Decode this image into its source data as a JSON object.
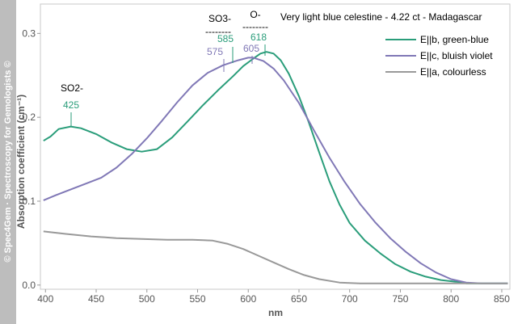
{
  "side_credit": "© Spec4Gem · Spectroscopy for Gemologists ©",
  "chart_data": {
    "type": "line",
    "title": "Very light blue celestine - 4.22 ct - Madagascar",
    "xlabel": "nm",
    "ylabel": "Absorption coefficient (cm⁻¹)",
    "xlim": [
      395,
      858
    ],
    "ylim": [
      -0.005,
      0.335
    ],
    "x_ticks": [
      400,
      450,
      500,
      550,
      600,
      650,
      700,
      750,
      800,
      850
    ],
    "y_ticks": [
      0.0,
      0.1,
      0.2,
      0.3
    ],
    "y_tick_labels": [
      "0.0",
      "0.1",
      "0.2",
      "0.3"
    ],
    "legend_position": "top-right",
    "grid": false,
    "series": [
      {
        "name": "E||b, green-blue",
        "color": "#2a9d7a",
        "points": [
          [
            398,
            0.172
          ],
          [
            405,
            0.177
          ],
          [
            413,
            0.186
          ],
          [
            425,
            0.189
          ],
          [
            435,
            0.187
          ],
          [
            450,
            0.18
          ],
          [
            465,
            0.17
          ],
          [
            480,
            0.162
          ],
          [
            495,
            0.159
          ],
          [
            510,
            0.162
          ],
          [
            525,
            0.176
          ],
          [
            540,
            0.195
          ],
          [
            555,
            0.214
          ],
          [
            570,
            0.232
          ],
          [
            585,
            0.249
          ],
          [
            595,
            0.261
          ],
          [
            605,
            0.27
          ],
          [
            612,
            0.276
          ],
          [
            618,
            0.278
          ],
          [
            625,
            0.276
          ],
          [
            632,
            0.268
          ],
          [
            640,
            0.252
          ],
          [
            650,
            0.225
          ],
          [
            660,
            0.193
          ],
          [
            670,
            0.158
          ],
          [
            680,
            0.124
          ],
          [
            690,
            0.096
          ],
          [
            700,
            0.074
          ],
          [
            715,
            0.053
          ],
          [
            730,
            0.038
          ],
          [
            745,
            0.025
          ],
          [
            760,
            0.016
          ],
          [
            775,
            0.01
          ],
          [
            790,
            0.006
          ],
          [
            805,
            0.004
          ],
          [
            815,
            0.002
          ],
          [
            830,
            0.002
          ],
          [
            845,
            0.002
          ],
          [
            856,
            0.002
          ]
        ]
      },
      {
        "name": "E||c, bluish violet",
        "color": "#8078b6",
        "points": [
          [
            398,
            0.101
          ],
          [
            410,
            0.107
          ],
          [
            425,
            0.114
          ],
          [
            440,
            0.121
          ],
          [
            455,
            0.128
          ],
          [
            470,
            0.14
          ],
          [
            485,
            0.156
          ],
          [
            500,
            0.175
          ],
          [
            515,
            0.196
          ],
          [
            530,
            0.218
          ],
          [
            545,
            0.238
          ],
          [
            560,
            0.253
          ],
          [
            575,
            0.262
          ],
          [
            590,
            0.268
          ],
          [
            600,
            0.271
          ],
          [
            605,
            0.271
          ],
          [
            615,
            0.267
          ],
          [
            625,
            0.258
          ],
          [
            635,
            0.244
          ],
          [
            650,
            0.217
          ],
          [
            665,
            0.184
          ],
          [
            680,
            0.152
          ],
          [
            695,
            0.123
          ],
          [
            710,
            0.097
          ],
          [
            725,
            0.075
          ],
          [
            740,
            0.056
          ],
          [
            755,
            0.04
          ],
          [
            770,
            0.026
          ],
          [
            785,
            0.015
          ],
          [
            800,
            0.007
          ],
          [
            815,
            0.003
          ],
          [
            830,
            0.002
          ],
          [
            845,
            0.002
          ],
          [
            856,
            0.002
          ]
        ]
      },
      {
        "name": "E||a, colourless",
        "color": "#999999",
        "points": [
          [
            398,
            0.064
          ],
          [
            420,
            0.061
          ],
          [
            445,
            0.058
          ],
          [
            470,
            0.056
          ],
          [
            495,
            0.055
          ],
          [
            520,
            0.054
          ],
          [
            545,
            0.054
          ],
          [
            565,
            0.053
          ],
          [
            580,
            0.049
          ],
          [
            595,
            0.043
          ],
          [
            610,
            0.035
          ],
          [
            625,
            0.027
          ],
          [
            640,
            0.019
          ],
          [
            655,
            0.012
          ],
          [
            670,
            0.007
          ],
          [
            690,
            0.003
          ],
          [
            710,
            0.002
          ],
          [
            740,
            0.002
          ],
          [
            780,
            0.002
          ],
          [
            820,
            0.002
          ],
          [
            856,
            0.002
          ]
        ]
      }
    ],
    "annotations": [
      {
        "text": "SO2-",
        "color": "#000000"
      },
      {
        "text": "425",
        "x": 425,
        "color": "#2a9d7a"
      },
      {
        "text": "SO3-",
        "color": "#000000"
      },
      {
        "text": "--------",
        "color": "#000000"
      },
      {
        "text": "585",
        "x": 585,
        "color": "#2a9d7a"
      },
      {
        "text": "575",
        "x": 575,
        "color": "#8078b6"
      },
      {
        "text": "O-",
        "color": "#000000"
      },
      {
        "text": "--------",
        "color": "#000000"
      },
      {
        "text": "618",
        "x": 618,
        "color": "#2a9d7a"
      },
      {
        "text": "605",
        "x": 605,
        "color": "#8078b6"
      }
    ]
  }
}
